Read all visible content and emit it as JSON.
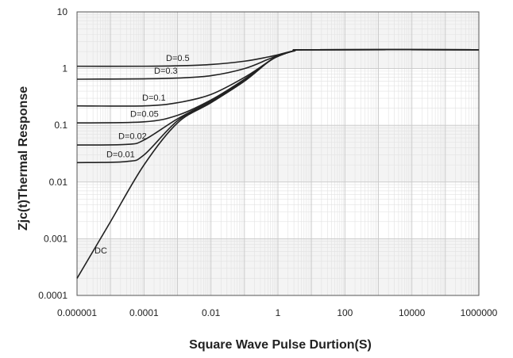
{
  "chart_data": {
    "type": "line",
    "xlabel": "Square Wave Pulse Durtion(S)",
    "ylabel": "Zjc(t)Thermal Response",
    "x_scale": "log",
    "y_scale": "log",
    "xlim": [
      1e-06,
      1000000
    ],
    "ylim": [
      0.0001,
      10
    ],
    "x_ticks": [
      "0.000001",
      "0.0001",
      "0.01",
      "1",
      "100",
      "10000",
      "1000000"
    ],
    "y_ticks": [
      "0.0001",
      "0.001",
      "0.01",
      "0.1",
      "1",
      "10"
    ],
    "grid": true,
    "series": [
      {
        "name": "D=0.5",
        "points": [
          [
            1e-06,
            1.1
          ],
          [
            0.0001,
            1.1
          ],
          [
            0.001,
            1.12
          ],
          [
            0.01,
            1.18
          ],
          [
            0.1,
            1.35
          ],
          [
            0.5,
            1.6
          ],
          [
            1,
            1.75
          ],
          [
            3,
            2.05
          ],
          [
            10,
            2.15
          ],
          [
            1000000,
            2.15
          ]
        ]
      },
      {
        "name": "D=0.3",
        "points": [
          [
            1e-06,
            0.65
          ],
          [
            0.0001,
            0.66
          ],
          [
            0.001,
            0.68
          ],
          [
            0.01,
            0.75
          ],
          [
            0.1,
            1.0
          ],
          [
            0.5,
            1.45
          ],
          [
            1,
            1.7
          ],
          [
            3,
            2.05
          ],
          [
            10,
            2.15
          ],
          [
            1000000,
            2.15
          ]
        ]
      },
      {
        "name": "D=0.1",
        "points": [
          [
            1e-06,
            0.22
          ],
          [
            0.0001,
            0.22
          ],
          [
            0.001,
            0.25
          ],
          [
            0.01,
            0.35
          ],
          [
            0.1,
            0.7
          ],
          [
            0.5,
            1.3
          ],
          [
            1,
            1.65
          ],
          [
            3,
            2.05
          ],
          [
            10,
            2.15
          ],
          [
            1000000,
            2.15
          ]
        ]
      },
      {
        "name": "D=0.05",
        "points": [
          [
            1e-06,
            0.11
          ],
          [
            0.0001,
            0.115
          ],
          [
            0.001,
            0.15
          ],
          [
            0.01,
            0.28
          ],
          [
            0.1,
            0.65
          ],
          [
            0.5,
            1.3
          ],
          [
            1,
            1.65
          ],
          [
            3,
            2.05
          ],
          [
            10,
            2.15
          ],
          [
            1000000,
            2.15
          ]
        ]
      },
      {
        "name": "D=0.02",
        "points": [
          [
            1e-06,
            0.045
          ],
          [
            3e-05,
            0.046
          ],
          [
            0.0001,
            0.055
          ],
          [
            0.001,
            0.13
          ],
          [
            0.01,
            0.27
          ],
          [
            0.1,
            0.62
          ],
          [
            0.5,
            1.3
          ],
          [
            1,
            1.65
          ],
          [
            3,
            2.05
          ],
          [
            10,
            2.15
          ],
          [
            1000000,
            2.15
          ]
        ]
      },
      {
        "name": "D=0.01",
        "points": [
          [
            1e-06,
            0.022
          ],
          [
            3e-05,
            0.023
          ],
          [
            0.0001,
            0.03
          ],
          [
            0.001,
            0.12
          ],
          [
            0.01,
            0.26
          ],
          [
            0.1,
            0.62
          ],
          [
            0.5,
            1.3
          ],
          [
            1,
            1.65
          ],
          [
            3,
            2.05
          ],
          [
            10,
            2.15
          ],
          [
            1000000,
            2.15
          ]
        ]
      },
      {
        "name": "DC",
        "points": [
          [
            1e-06,
            0.0002
          ],
          [
            1e-05,
            0.002
          ],
          [
            0.0001,
            0.02
          ],
          [
            0.001,
            0.11
          ],
          [
            0.01,
            0.25
          ],
          [
            0.1,
            0.6
          ],
          [
            0.5,
            1.3
          ],
          [
            1,
            1.65
          ],
          [
            3,
            2.05
          ],
          [
            10,
            2.15
          ],
          [
            1000000,
            2.15
          ]
        ]
      }
    ],
    "annotations": [
      {
        "text": "D=0.5",
        "series": "D=0.5"
      },
      {
        "text": "D=0.3",
        "series": "D=0.3"
      },
      {
        "text": "D=0.1",
        "series": "D=0.1"
      },
      {
        "text": "D=0.05",
        "series": "D=0.05"
      },
      {
        "text": "D=0.02",
        "series": "D=0.02"
      },
      {
        "text": "D=0.01",
        "series": "D=0.01"
      },
      {
        "text": "DC",
        "series": "DC"
      }
    ]
  }
}
